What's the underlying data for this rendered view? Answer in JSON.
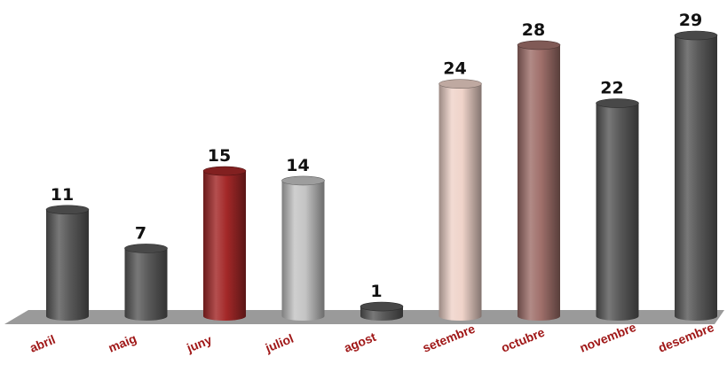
{
  "chart_data": {
    "type": "bar",
    "style": "3d-cylinder",
    "categories": [
      "abril",
      "maig",
      "juny",
      "juliol",
      "agost",
      "setembre",
      "octubre",
      "novembre",
      "desembre"
    ],
    "values": [
      11,
      7,
      15,
      14,
      1,
      24,
      28,
      22,
      29
    ],
    "bar_colors": [
      "#5a5a5a",
      "#5a5a5a",
      "#a32828",
      "#c4c4c4",
      "#5a5a5a",
      "#efd3c9",
      "#a0706b",
      "#5a5a5a",
      "#5a5a5a"
    ],
    "floor_color": "#9a9a9a",
    "category_label_color": "#a01818",
    "data_labels": true,
    "grid": false,
    "legend": "none",
    "ylim": [
      0,
      29
    ]
  }
}
